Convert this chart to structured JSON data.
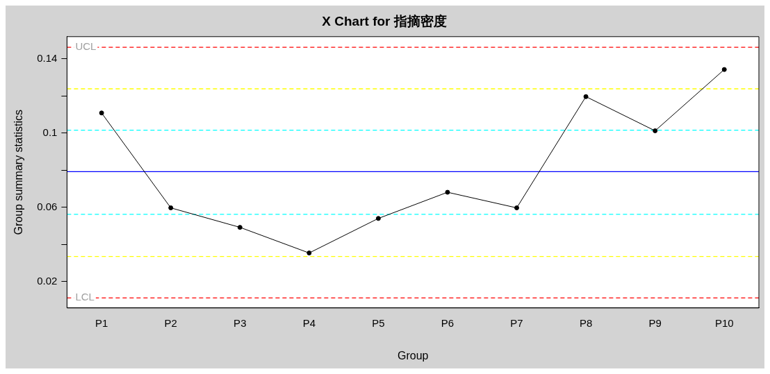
{
  "chart_data": {
    "type": "line",
    "title": "X Chart for 指摘密度",
    "xlabel": "Group",
    "ylabel": "Group summary statistics",
    "categories": [
      "P1",
      "P2",
      "P3",
      "P4",
      "P5",
      "P6",
      "P7",
      "P8",
      "P9",
      "P10"
    ],
    "series": [
      {
        "color": "#000000",
        "values": [
          0.1108,
          0.0597,
          0.0492,
          0.0354,
          0.054,
          0.0681,
          0.0597,
          0.1196,
          0.1012,
          0.1342
        ]
      }
    ],
    "marker": "circle",
    "line_style": "solid",
    "grid": false,
    "legend": false,
    "ylim": [
      0.0058,
      0.1519
    ],
    "yticks": [
      0.02,
      {
        "value": 0.04,
        "label": null
      },
      0.06,
      {
        "value": 0.08,
        "label": null
      },
      0.1,
      {
        "value": 0.12,
        "label": null
      },
      0.14
    ],
    "ref_lines": [
      {
        "axis": "y",
        "value": 0.1462,
        "label": "UCL",
        "color": "#ff0000",
        "line_style": "dashed"
      },
      {
        "axis": "y",
        "value": 0.1238,
        "color": "#ffff00",
        "line_style": "dashed"
      },
      {
        "axis": "y",
        "value": 0.1015,
        "color": "#00ffff",
        "line_style": "dashed"
      },
      {
        "axis": "y",
        "value": 0.0792,
        "color": "#0000ff",
        "line_style": "solid"
      },
      {
        "axis": "y",
        "value": 0.0562,
        "color": "#00ffff",
        "line_style": "dashed"
      },
      {
        "axis": "y",
        "value": 0.0335,
        "color": "#ffff00",
        "line_style": "dashed"
      },
      {
        "axis": "y",
        "value": 0.0112,
        "label": "LCL",
        "color": "#ff0000",
        "line_style": "dashed"
      }
    ]
  }
}
